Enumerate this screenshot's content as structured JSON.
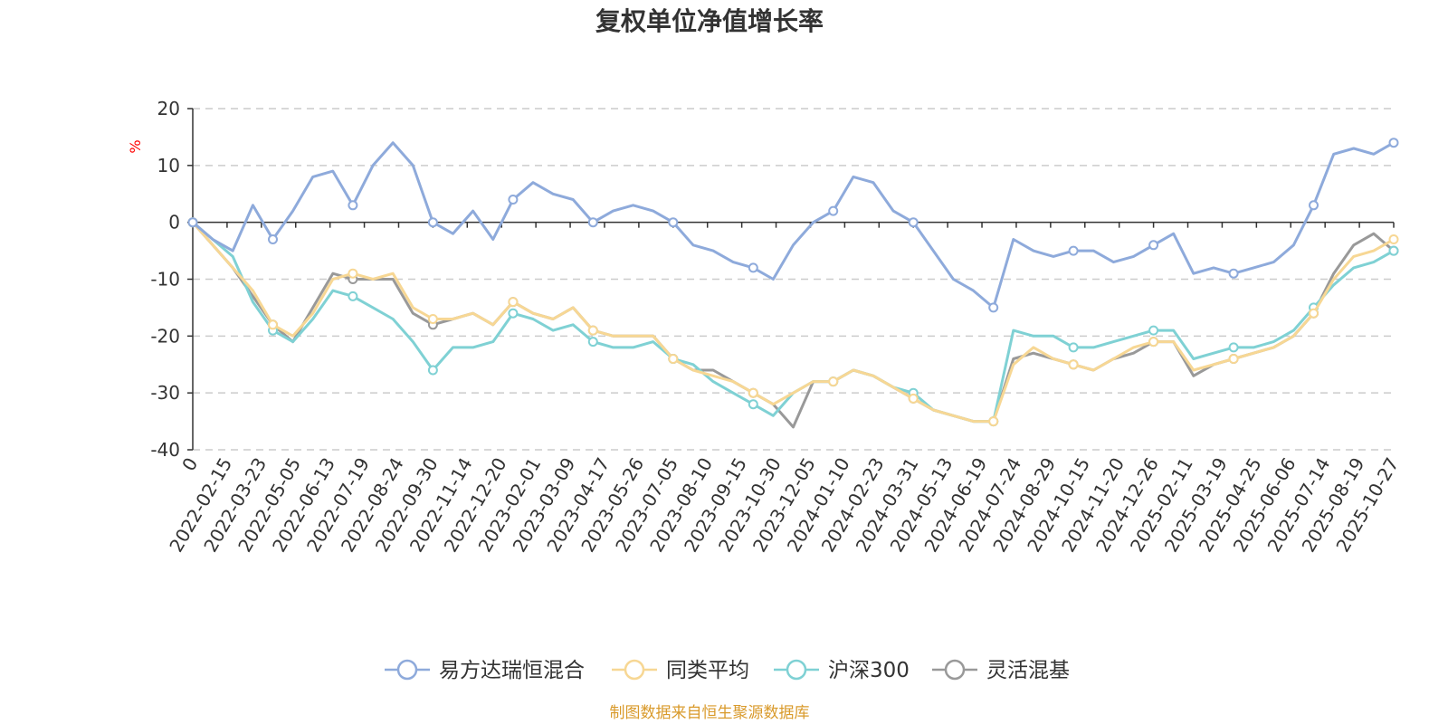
{
  "chart_data": {
    "type": "line",
    "title": "复权单位净值增长率",
    "ylabel": "%",
    "ylim": [
      -40,
      20
    ],
    "yticks": [
      "20",
      "10",
      "0",
      "-10",
      "-20",
      "-30",
      "-40"
    ],
    "x_labels": [
      "0",
      "2022-02-15",
      "2022-03-23",
      "2022-05-05",
      "2022-06-13",
      "2022-07-19",
      "2022-08-24",
      "2022-09-30",
      "2022-11-14",
      "2022-12-20",
      "2023-02-01",
      "2023-03-09",
      "2023-04-17",
      "2023-05-26",
      "2023-07-05",
      "2023-08-10",
      "2023-09-15",
      "2023-10-30",
      "2023-12-05",
      "2024-01-10",
      "2024-02-23",
      "2024-03-31",
      "2024-05-13",
      "2024-06-19",
      "2024-07-24",
      "2024-08-29",
      "2024-10-15",
      "2024-11-20",
      "2024-12-26",
      "2025-02-11",
      "2025-03-19",
      "2025-04-25",
      "2025-06-06",
      "2025-07-14",
      "2025-08-19",
      "2025-10-27"
    ],
    "series": [
      {
        "name": "易方达瑞恒混合",
        "color": "#8eaadb",
        "values": [
          0,
          -3,
          -5,
          3,
          -3,
          2,
          8,
          9,
          3,
          10,
          14,
          10,
          0,
          -2,
          2,
          -3,
          4,
          7,
          5,
          4,
          0,
          2,
          3,
          2,
          0,
          -4,
          -5,
          -7,
          -8,
          -10,
          -4,
          0,
          2,
          8,
          7,
          2,
          0,
          -5,
          -10,
          -12,
          -15,
          -3,
          -5,
          -6,
          -5,
          -5,
          -7,
          -6,
          -4,
          -2,
          -9,
          -8,
          -9,
          -8,
          -7,
          -4,
          3,
          12,
          13,
          12,
          14
        ]
      },
      {
        "name": "同类平均",
        "color": "#f7d794",
        "values": [
          0,
          -4,
          -8,
          -12,
          -18,
          -20,
          -16,
          -10,
          -9,
          -10,
          -9,
          -15,
          -17,
          -17,
          -16,
          -18,
          -14,
          -16,
          -17,
          -15,
          -19,
          -20,
          -20,
          -20,
          -24,
          -26,
          -27,
          -28,
          -30,
          -32,
          -30,
          -28,
          -28,
          -26,
          -27,
          -29,
          -31,
          -33,
          -34,
          -35,
          -35,
          -25,
          -22,
          -24,
          -25,
          -26,
          -24,
          -22,
          -21,
          -21,
          -26,
          -25,
          -24,
          -23,
          -22,
          -20,
          -16,
          -10,
          -6,
          -5,
          -3
        ]
      },
      {
        "name": "沪深300",
        "color": "#7fd1d4",
        "values": [
          0,
          -3,
          -6,
          -14,
          -19,
          -21,
          -17,
          -12,
          -13,
          -15,
          -17,
          -21,
          -26,
          -22,
          -22,
          -21,
          -16,
          -17,
          -19,
          -18,
          -21,
          -22,
          -22,
          -21,
          -24,
          -25,
          -28,
          -30,
          -32,
          -34,
          -30,
          -28,
          -28,
          -26,
          -27,
          -29,
          -30,
          -33,
          -34,
          -35,
          -35,
          -19,
          -20,
          -20,
          -22,
          -22,
          -21,
          -20,
          -19,
          -19,
          -24,
          -23,
          -22,
          -22,
          -21,
          -19,
          -15,
          -11,
          -8,
          -7,
          -5
        ]
      },
      {
        "name": "灵活混基",
        "color": "#999999",
        "values": [
          0,
          -4,
          -8,
          -13,
          -18,
          -21,
          -15,
          -9,
          -10,
          -10,
          -10,
          -16,
          -18,
          -17,
          -16,
          -18,
          -14,
          -16,
          -17,
          -15,
          -19,
          -20,
          -20,
          -20,
          -24,
          -26,
          -26,
          -28,
          -30,
          -32,
          -36,
          -28,
          -28,
          -26,
          -27,
          -29,
          -31,
          -33,
          -34,
          -35,
          -35,
          -24,
          -23,
          -24,
          -25,
          -26,
          -24,
          -23,
          -21,
          -21,
          -27,
          -25,
          -24,
          -23,
          -22,
          -20,
          -16,
          -9,
          -4,
          -2,
          -5
        ]
      }
    ]
  },
  "footer": {
    "source": "制图数据来自恒生聚源数据库"
  }
}
